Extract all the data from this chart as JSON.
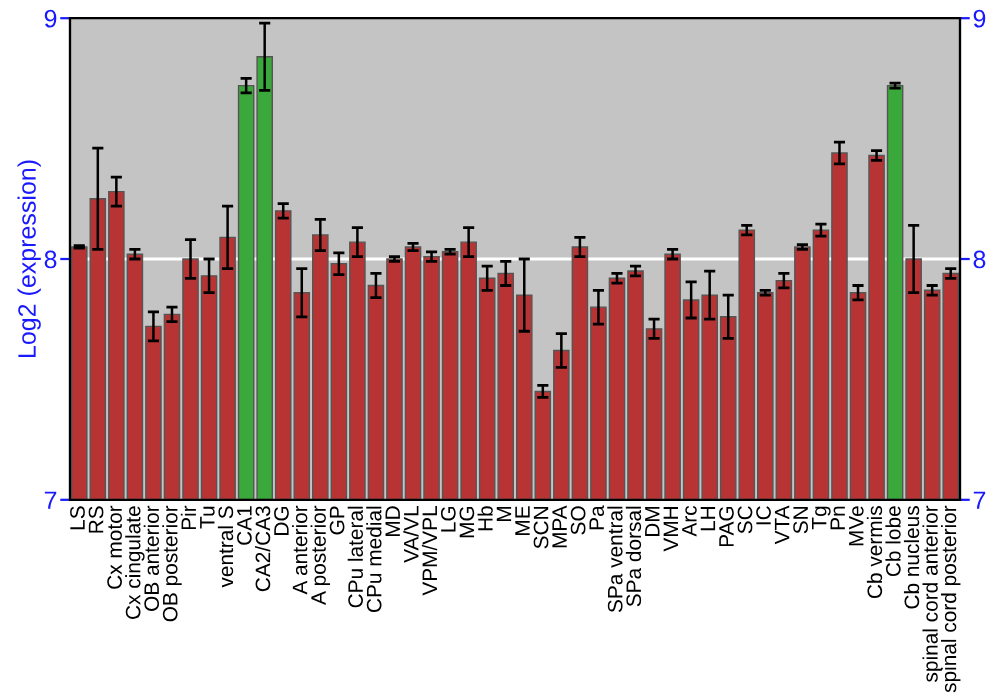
{
  "chart_data": {
    "type": "bar",
    "ylabel": "Log2 (expression)",
    "categories": [
      "LS",
      "RS",
      "Cx motor",
      "Cx cingulate",
      "OB anterior",
      "OB posterior",
      "Pir",
      "Tu",
      "ventral S",
      "CA1",
      "CA2/CA3",
      "DG",
      "A anterior",
      "A posterior",
      "GP",
      "CPu lateral",
      "CPu medial",
      "MD",
      "VA/VL",
      "VPM/VPL",
      "LG",
      "MG",
      "Hb",
      "M",
      "ME",
      "SCN",
      "MPA",
      "SO",
      "Pa",
      "SPa ventral",
      "SPa dorsal",
      "DM",
      "VMH",
      "Arc",
      "LH",
      "PAG",
      "SC",
      "IC",
      "VTA",
      "SN",
      "Tg",
      "Pn",
      "MVe",
      "Cb vermis",
      "Cb lobe",
      "Cb nucleus",
      "spinal cord anterior",
      "spinal cord posterior"
    ],
    "values": [
      8.05,
      8.25,
      8.28,
      8.02,
      7.72,
      7.77,
      8.0,
      7.93,
      8.09,
      8.72,
      8.84,
      8.2,
      7.86,
      8.1,
      7.98,
      8.07,
      7.89,
      8.0,
      8.05,
      8.01,
      8.03,
      8.07,
      7.92,
      7.94,
      7.85,
      7.45,
      7.62,
      8.05,
      7.8,
      7.92,
      7.95,
      7.71,
      8.02,
      7.83,
      7.85,
      7.76,
      8.12,
      7.86,
      7.91,
      8.05,
      8.12,
      8.44,
      7.86,
      8.43,
      8.72,
      8.0,
      7.87,
      7.94
    ],
    "errors": [
      0.005,
      0.21,
      0.06,
      0.02,
      0.06,
      0.03,
      0.08,
      0.07,
      0.13,
      0.03,
      0.14,
      0.03,
      0.1,
      0.065,
      0.045,
      0.06,
      0.05,
      0.01,
      0.015,
      0.02,
      0.01,
      0.06,
      0.05,
      0.05,
      0.15,
      0.025,
      0.07,
      0.04,
      0.07,
      0.02,
      0.02,
      0.04,
      0.02,
      0.075,
      0.1,
      0.09,
      0.02,
      0.01,
      0.03,
      0.01,
      0.025,
      0.045,
      0.03,
      0.02,
      0.01,
      0.14,
      0.02,
      0.02
    ],
    "colors": [
      "#b83434",
      "#b83434",
      "#b83434",
      "#b83434",
      "#b83434",
      "#b83434",
      "#b83434",
      "#b83434",
      "#b83434",
      "#3aa83a",
      "#3aa83a",
      "#b83434",
      "#b83434",
      "#b83434",
      "#b83434",
      "#b83434",
      "#b83434",
      "#b83434",
      "#b83434",
      "#b83434",
      "#b83434",
      "#b83434",
      "#b83434",
      "#b83434",
      "#b83434",
      "#b83434",
      "#b83434",
      "#b83434",
      "#b83434",
      "#b83434",
      "#b83434",
      "#b83434",
      "#b83434",
      "#b83434",
      "#b83434",
      "#b83434",
      "#b83434",
      "#b83434",
      "#b83434",
      "#b83434",
      "#b83434",
      "#b83434",
      "#b83434",
      "#b83434",
      "#3aa83a",
      "#b83434",
      "#b83434",
      "#b83434"
    ],
    "ylim": [
      7,
      9
    ],
    "yticks": [
      7,
      8,
      9
    ],
    "y2lim": [
      7,
      9
    ],
    "y2ticks": [
      7,
      8,
      9
    ],
    "grid": "y",
    "legend": false
  }
}
